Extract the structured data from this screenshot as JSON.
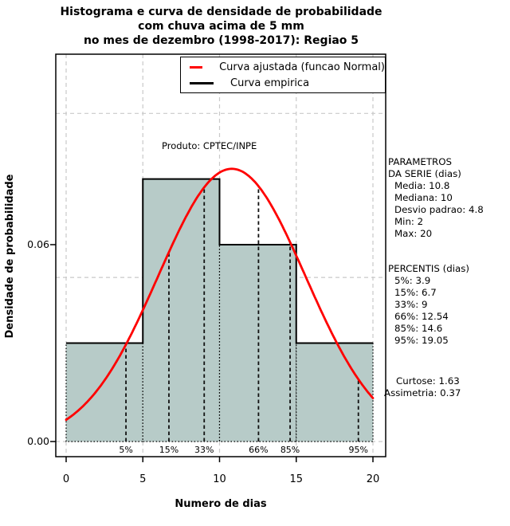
{
  "title": {
    "line1": "Histograma e curva de densidade de probabilidade",
    "line2": "com chuva acima de 5 mm",
    "line3": "no mes de dezembro (1998-2017): Regiao 5"
  },
  "legend": {
    "fitted": {
      "label": "Curva ajustada (funcao Normal)",
      "color": "#ff0000"
    },
    "empirical": {
      "label": "Curva empirica",
      "color": "#000000"
    }
  },
  "annotation": "Produto: CPTEC/INPE",
  "x_axis": {
    "label": "Numero de dias"
  },
  "y_axis": {
    "label": "Densidade de probabilidade"
  },
  "side_panel": {
    "params_title_line1": "PARAMETROS",
    "params_title_line2": "DA SERIE (dias)",
    "params": [
      "Media: 10.8",
      "Mediana: 10",
      "Desvio padrao: 4.8",
      "Min: 2",
      "Max: 20"
    ],
    "percentis_title": "PERCENTIS (dias)",
    "percentis": [
      "5%: 3.9",
      "15%: 6.7",
      "33%: 9",
      "66%: 12.54",
      "85%: 14.6",
      "95%: 19.05"
    ],
    "curtose": "Curtose: 1.63",
    "assimetria": "Assimetria: 0.37"
  },
  "chart_data": {
    "type": "histogram+density-line",
    "title": "Histograma e curva de densidade de probabilidade com chuva acima de 5 mm no mes de dezembro (1998-2017): Regiao 5",
    "xlabel": "Numero de dias",
    "ylabel": "Densidade de probabilidade",
    "xlim": [
      0,
      20
    ],
    "ylim": [
      0,
      0.118
    ],
    "x_ticks": [
      "0",
      "5",
      "10",
      "15",
      "20"
    ],
    "x_tick_values": [
      0,
      5,
      10,
      15,
      20
    ],
    "y_ticks": [
      "0.00",
      "0.06"
    ],
    "y_tick_values": [
      0.0,
      0.06
    ],
    "gridlines_x": [
      0,
      5,
      10,
      15,
      20
    ],
    "gridlines_y": [
      0.0,
      0.05,
      0.1
    ],
    "grid_color": "#c9c9c9",
    "histogram": {
      "bin_edges": [
        0,
        5,
        10,
        15,
        20
      ],
      "densities": [
        0.03,
        0.08,
        0.06,
        0.03
      ],
      "fill_color": "#b7cbc8",
      "border_color": "#000000"
    },
    "empirical_step_color": "#000000",
    "normal_fit": {
      "mean": 10.8,
      "sd": 4.8,
      "color": "#ff0000"
    },
    "percentiles": [
      {
        "label": "5%",
        "x": 3.9
      },
      {
        "label": "15%",
        "x": 6.7
      },
      {
        "label": "33%",
        "x": 9
      },
      {
        "label": "66%",
        "x": 12.54
      },
      {
        "label": "85%",
        "x": 14.6
      },
      {
        "label": "95%",
        "x": 19.05
      }
    ],
    "stats": {
      "media": 10.8,
      "mediana": 10,
      "desvio_padrao": 4.8,
      "min": 2,
      "max": 20,
      "percentis": {
        "p5": 3.9,
        "p15": 6.7,
        "p33": 9,
        "p66": 12.54,
        "p85": 14.6,
        "p95": 19.05
      },
      "curtose": 1.63,
      "assimetria": 0.37
    },
    "legend": [
      "Curva ajustada (funcao Normal)",
      "Curva empirica"
    ],
    "legend_position": "top"
  }
}
